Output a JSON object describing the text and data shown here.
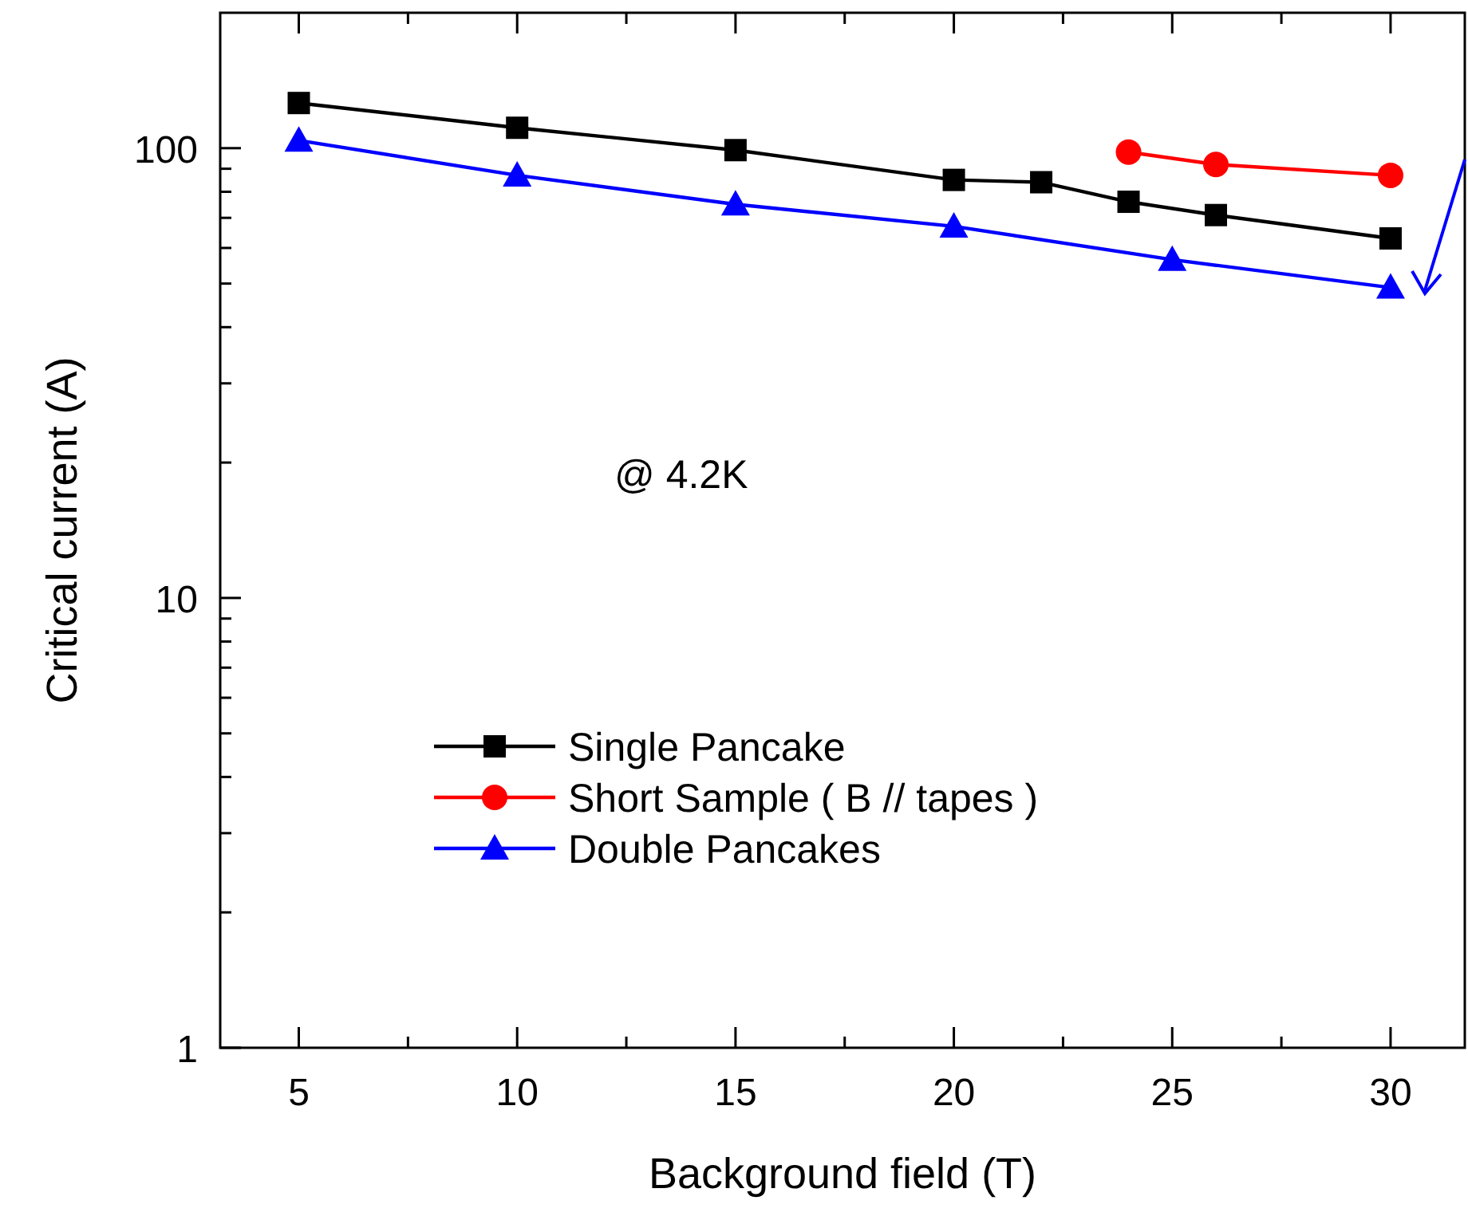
{
  "chart_data": {
    "type": "line",
    "xlabel": "Background field (T)",
    "ylabel": "Critical current (A)",
    "log": "y",
    "xlim": [
      3.2,
      31.7
    ],
    "ylim": [
      1,
      200
    ],
    "xticks": [
      5,
      {
        "value": 7.5,
        "label": null
      },
      10,
      {
        "value": 12.5,
        "label": null
      },
      15,
      {
        "value": 17.5,
        "label": null
      },
      20,
      {
        "value": 22.5,
        "label": null
      },
      25,
      {
        "value": 27.5,
        "label": null
      },
      30
    ],
    "yticks": [
      1,
      {
        "value": 2,
        "label": null
      },
      {
        "value": 3,
        "label": null
      },
      {
        "value": 4,
        "label": null
      },
      {
        "value": 5,
        "label": null
      },
      {
        "value": 6,
        "label": null
      },
      {
        "value": 7,
        "label": null
      },
      {
        "value": 8,
        "label": null
      },
      {
        "value": 9,
        "label": null
      },
      10,
      {
        "value": 20,
        "label": null
      },
      {
        "value": 30,
        "label": null
      },
      {
        "value": 40,
        "label": null
      },
      {
        "value": 50,
        "label": null
      },
      {
        "value": 60,
        "label": null
      },
      {
        "value": 70,
        "label": null
      },
      {
        "value": 80,
        "label": null
      },
      {
        "value": 90,
        "label": null
      },
      100
    ],
    "legend": "bottom left",
    "grid": false,
    "annotations": [
      "@ 4.2K"
    ],
    "series": [
      {
        "name": "Single Pancake",
        "color": "#000000",
        "marker": "square",
        "x": [
          5,
          10,
          15,
          20,
          22,
          24,
          26,
          30
        ],
        "values": [
          126,
          111,
          99,
          85,
          84,
          76,
          71,
          63
        ]
      },
      {
        "name": "Short Sample ( B // tapes )",
        "color": "#ff0000",
        "marker": "circle",
        "x": [
          24,
          26,
          30
        ],
        "values": [
          98,
          92,
          87
        ]
      },
      {
        "name": "Double Pancakes",
        "color": "#0000ff",
        "marker": "triangle",
        "x": [
          5,
          10,
          15,
          20,
          25,
          30
        ],
        "values": [
          104,
          87,
          75,
          67,
          56.5,
          49
        ]
      }
    ]
  }
}
